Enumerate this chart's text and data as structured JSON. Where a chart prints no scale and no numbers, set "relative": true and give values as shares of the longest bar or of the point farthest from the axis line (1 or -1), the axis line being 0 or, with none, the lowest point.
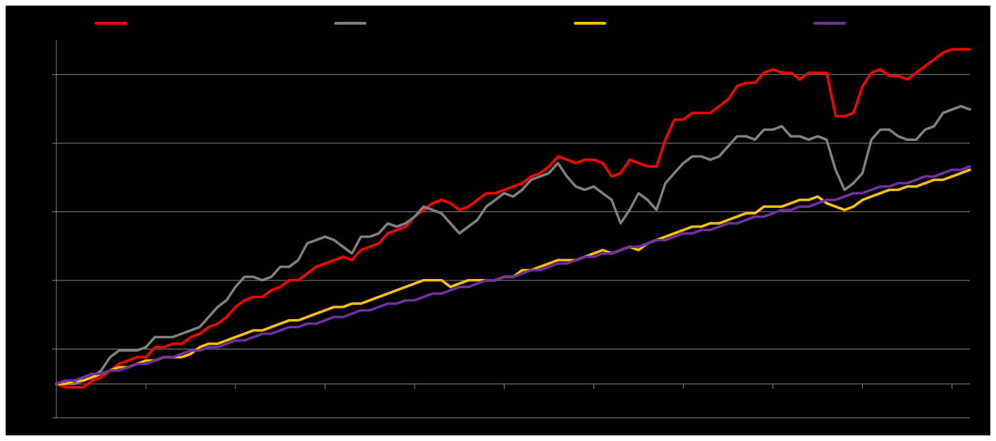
{
  "chart_data": {
    "type": "line",
    "relative": true,
    "grid": true,
    "marker": "none",
    "line_style": "solid",
    "categories": [
      null,
      null,
      null,
      null,
      null,
      null,
      null,
      null,
      null,
      null,
      null,
      null,
      null,
      null,
      null,
      null,
      null,
      null,
      null,
      null,
      null,
      null,
      null,
      null,
      null,
      null,
      null,
      null,
      null,
      null,
      null,
      null,
      null,
      null,
      null,
      null,
      null,
      null,
      null,
      null,
      null,
      null,
      null,
      null,
      null,
      null,
      null,
      null,
      null,
      null,
      null,
      null,
      null,
      null,
      null,
      null,
      null,
      null,
      null,
      null,
      null,
      null,
      null,
      null,
      null,
      null,
      null,
      null,
      null,
      null,
      null,
      null,
      null,
      null,
      null,
      null,
      null,
      null,
      null,
      null,
      null,
      null,
      null,
      null,
      null,
      null,
      null,
      null,
      null,
      null,
      null,
      null,
      null,
      null,
      null,
      null,
      null,
      null,
      null,
      null,
      null,
      null,
      null
    ],
    "series": [
      {
        "color": "#ff0000",
        "values": [
          0,
          -0.01,
          -0.01,
          -0.01,
          0.01,
          0.02,
          0.04,
          0.06,
          0.07,
          0.08,
          0.08,
          0.11,
          0.11,
          0.12,
          0.12,
          0.14,
          0.15,
          0.17,
          0.18,
          0.2,
          0.23,
          0.25,
          0.26,
          0.26,
          0.28,
          0.29,
          0.31,
          0.31,
          0.33,
          0.35,
          0.36,
          0.37,
          0.38,
          0.37,
          0.4,
          0.41,
          0.42,
          0.45,
          0.46,
          0.47,
          0.5,
          0.52,
          0.54,
          0.55,
          0.54,
          0.52,
          0.53,
          0.55,
          0.57,
          0.57,
          0.58,
          0.59,
          0.6,
          0.62,
          0.63,
          0.65,
          0.68,
          0.67,
          0.66,
          0.67,
          0.67,
          0.66,
          0.62,
          0.63,
          0.67,
          0.66,
          0.65,
          0.65,
          0.73,
          0.79,
          0.79,
          0.81,
          0.81,
          0.81,
          0.83,
          0.85,
          0.89,
          0.9,
          0.9,
          0.93,
          0.94,
          0.93,
          0.93,
          0.91,
          0.93,
          0.93,
          0.93,
          0.8,
          0.8,
          0.81,
          0.89,
          0.93,
          0.94,
          0.92,
          0.92,
          0.91,
          0.93,
          0.95,
          0.97,
          0.99,
          1,
          1,
          1
        ]
      },
      {
        "color": "#808080",
        "values": [
          0,
          0,
          0,
          0.01,
          0.02,
          0.04,
          0.08,
          0.1,
          0.1,
          0.1,
          0.11,
          0.14,
          0.14,
          0.14,
          0.15,
          0.16,
          0.17,
          0.2,
          0.23,
          0.25,
          0.29,
          0.32,
          0.32,
          0.31,
          0.32,
          0.35,
          0.35,
          0.37,
          0.42,
          0.43,
          0.44,
          0.43,
          0.41,
          0.39,
          0.44,
          0.44,
          0.45,
          0.48,
          0.47,
          0.48,
          0.5,
          0.53,
          0.52,
          0.51,
          0.48,
          0.45,
          0.47,
          0.49,
          0.53,
          0.55,
          0.57,
          0.56,
          0.58,
          0.61,
          0.62,
          0.63,
          0.66,
          0.62,
          0.59,
          0.58,
          0.59,
          0.57,
          0.55,
          0.48,
          0.52,
          0.57,
          0.55,
          0.52,
          0.6,
          0.63,
          0.66,
          0.68,
          0.68,
          0.67,
          0.68,
          0.71,
          0.74,
          0.74,
          0.73,
          0.76,
          0.76,
          0.77,
          0.74,
          0.74,
          0.73,
          0.74,
          0.73,
          0.64,
          0.58,
          0.6,
          0.63,
          0.73,
          0.76,
          0.76,
          0.74,
          0.73,
          0.73,
          0.76,
          0.77,
          0.81,
          0.82,
          0.83,
          0.82
        ]
      },
      {
        "color": "#ffc000",
        "values": [
          0,
          0,
          0.01,
          0.01,
          0.02,
          0.03,
          0.04,
          0.05,
          0.05,
          0.06,
          0.07,
          0.07,
          0.08,
          0.08,
          0.08,
          0.09,
          0.11,
          0.12,
          0.12,
          0.13,
          0.14,
          0.15,
          0.16,
          0.16,
          0.17,
          0.18,
          0.19,
          0.19,
          0.2,
          0.21,
          0.22,
          0.23,
          0.23,
          0.24,
          0.24,
          0.25,
          0.26,
          0.27,
          0.28,
          0.29,
          0.3,
          0.31,
          0.31,
          0.31,
          0.29,
          0.3,
          0.31,
          0.31,
          0.31,
          0.31,
          0.32,
          0.32,
          0.34,
          0.34,
          0.35,
          0.36,
          0.37,
          0.37,
          0.37,
          0.38,
          0.39,
          0.4,
          0.39,
          0.4,
          0.41,
          0.4,
          0.42,
          0.43,
          0.44,
          0.45,
          0.46,
          0.47,
          0.47,
          0.48,
          0.48,
          0.49,
          0.5,
          0.51,
          0.51,
          0.53,
          0.53,
          0.53,
          0.54,
          0.55,
          0.55,
          0.56,
          0.54,
          0.53,
          0.52,
          0.53,
          0.55,
          0.56,
          0.57,
          0.58,
          0.58,
          0.59,
          0.59,
          0.6,
          0.61,
          0.61,
          0.62,
          0.63,
          0.64
        ]
      },
      {
        "color": "#7030a0",
        "values": [
          0,
          0.01,
          0.01,
          0.02,
          0.03,
          0.03,
          0.04,
          0.04,
          0.05,
          0.06,
          0.06,
          0.07,
          0.08,
          0.08,
          0.09,
          0.1,
          0.1,
          0.11,
          0.11,
          0.12,
          0.13,
          0.13,
          0.14,
          0.15,
          0.15,
          0.16,
          0.17,
          0.17,
          0.18,
          0.18,
          0.19,
          0.2,
          0.2,
          0.21,
          0.22,
          0.22,
          0.23,
          0.24,
          0.24,
          0.25,
          0.25,
          0.26,
          0.27,
          0.27,
          0.28,
          0.29,
          0.29,
          0.3,
          0.31,
          0.31,
          0.32,
          0.32,
          0.33,
          0.34,
          0.34,
          0.35,
          0.36,
          0.36,
          0.37,
          0.38,
          0.38,
          0.39,
          0.39,
          0.4,
          0.41,
          0.41,
          0.42,
          0.43,
          0.43,
          0.44,
          0.45,
          0.45,
          0.46,
          0.46,
          0.47,
          0.48,
          0.48,
          0.49,
          0.5,
          0.5,
          0.51,
          0.52,
          0.52,
          0.53,
          0.53,
          0.54,
          0.55,
          0.55,
          0.56,
          0.57,
          0.57,
          0.58,
          0.59,
          0.59,
          0.6,
          0.6,
          0.61,
          0.62,
          0.62,
          0.63,
          0.64,
          0.64,
          0.65
        ]
      }
    ]
  }
}
